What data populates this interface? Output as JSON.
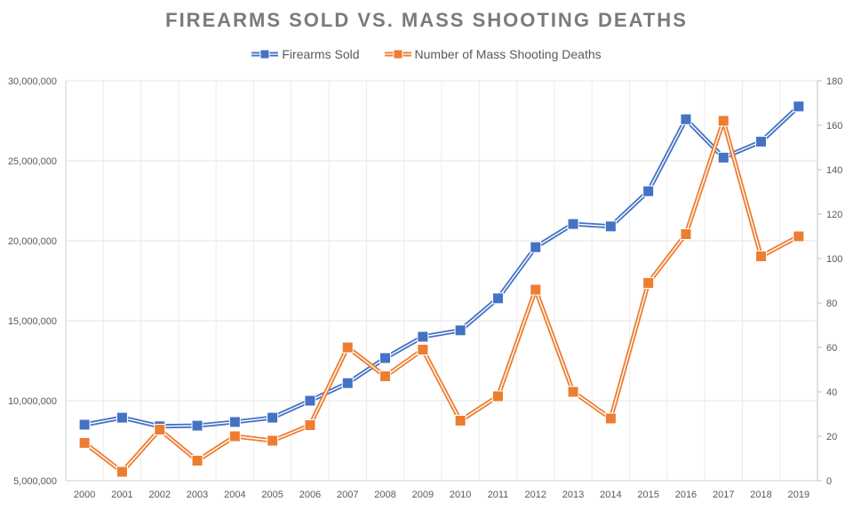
{
  "chart_data": {
    "type": "line",
    "title": "FIREARMS SOLD VS. MASS SHOOTING DEATHS",
    "xlabel": "",
    "ylabel": "",
    "y2label": "",
    "categories": [
      "2000",
      "2001",
      "2002",
      "2003",
      "2004",
      "2005",
      "2006",
      "2007",
      "2008",
      "2009",
      "2010",
      "2011",
      "2012",
      "2013",
      "2014",
      "2015",
      "2016",
      "2017",
      "2018",
      "2019"
    ],
    "series": [
      {
        "name": "Firearms Sold",
        "axis": "left",
        "color": "#4472c4",
        "values": [
          8500000,
          8940000,
          8400000,
          8440000,
          8670000,
          8940000,
          10000000,
          11100000,
          12670000,
          14000000,
          14400000,
          16400000,
          19600000,
          21050000,
          20900000,
          23100000,
          27600000,
          25200000,
          26200000,
          28400000
        ]
      },
      {
        "name": "Number of Mass Shooting Deaths",
        "axis": "right",
        "color": "#ed7d31",
        "values": [
          17,
          4,
          23,
          9,
          20,
          18,
          25,
          60,
          47,
          59,
          27,
          38,
          86,
          40,
          28,
          89,
          111,
          162,
          101,
          110
        ]
      }
    ],
    "ylim": [
      5000000,
      30000000
    ],
    "y2lim": [
      0,
      180
    ],
    "yticks": [
      "5,000,000",
      "10,000,000",
      "15,000,000",
      "20,000,000",
      "25,000,000",
      "30,000,000"
    ],
    "y2ticks": [
      "0",
      "20",
      "40",
      "60",
      "80",
      "100",
      "120",
      "140",
      "160",
      "180"
    ],
    "grid": true,
    "legend": "top-center"
  }
}
